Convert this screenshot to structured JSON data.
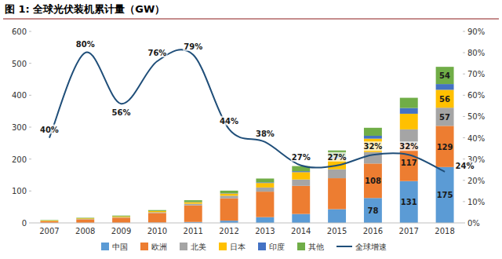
{
  "chart_data": {
    "type": "bar",
    "title": "图 1: 全球光伏装机累计量（GW）",
    "stacked": true,
    "grid": false,
    "legend": "bottom",
    "data_labels": true,
    "categories": [
      "2007",
      "2008",
      "2009",
      "2010",
      "2011",
      "2012",
      "2013",
      "2014",
      "2015",
      "2016",
      "2017",
      "2018"
    ],
    "ylim": [
      0,
      600
    ],
    "yticks": [
      0,
      100,
      200,
      300,
      400,
      500,
      600
    ],
    "y2lim": [
      0,
      90
    ],
    "y2ticks": [
      {
        "value": 0,
        "label": "0%"
      },
      {
        "value": 10,
        "label": "10%"
      },
      {
        "value": 20,
        "label": "20%"
      },
      {
        "value": 30,
        "label": "30%"
      },
      {
        "value": 40,
        "label": "40%"
      },
      {
        "value": 50,
        "label": "50%"
      },
      {
        "value": 60,
        "label": "60%"
      },
      {
        "value": 70,
        "label": "70%"
      },
      {
        "value": 80,
        "label": "80%"
      },
      {
        "value": 90,
        "label": "90%"
      }
    ],
    "series": [
      {
        "name": "中国",
        "color": "#5b9bd5",
        "type": "bar",
        "values": [
          0.1,
          0.1,
          0.3,
          1,
          3,
          7,
          18,
          28,
          43,
          78,
          131,
          175
        ],
        "value_labels": [
          null,
          null,
          null,
          null,
          null,
          null,
          null,
          null,
          null,
          "78",
          "131",
          "175"
        ]
      },
      {
        "name": "欧洲",
        "color": "#ed7d31",
        "type": "bar",
        "values": [
          5,
          11,
          16,
          30,
          52,
          70,
          80,
          88,
          97,
          108,
          117,
          129
        ],
        "value_labels": [
          null,
          null,
          null,
          null,
          null,
          null,
          null,
          null,
          null,
          "108",
          "117",
          "129"
        ]
      },
      {
        "name": "北美",
        "color": "#a5a5a5",
        "type": "bar",
        "values": [
          0.7,
          1,
          1.5,
          2.5,
          5,
          8,
          13,
          20,
          28,
          36,
          45,
          57
        ],
        "value_labels": [
          null,
          null,
          null,
          null,
          null,
          null,
          null,
          null,
          null,
          null,
          null,
          "57"
        ]
      },
      {
        "name": "日本",
        "color": "#ffc000",
        "type": "bar",
        "values": [
          1.9,
          2.1,
          2.6,
          3.6,
          5,
          7,
          14,
          23,
          34,
          42,
          49,
          56
        ],
        "value_labels": [
          null,
          null,
          null,
          null,
          null,
          null,
          null,
          null,
          null,
          null,
          null,
          "56"
        ]
      },
      {
        "name": "印度",
        "color": "#4472c4",
        "type": "bar",
        "values": [
          0,
          0,
          0,
          0,
          0.5,
          1,
          2,
          3,
          5,
          9,
          18,
          18
        ],
        "value_labels": [
          null,
          null,
          null,
          null,
          null,
          null,
          null,
          null,
          null,
          null,
          null,
          null
        ]
      },
      {
        "name": "其他",
        "color": "#70ad47",
        "type": "bar",
        "values": [
          1.3,
          1.8,
          2.5,
          3,
          5.5,
          8,
          12,
          16,
          20,
          25,
          32,
          54
        ],
        "value_labels": [
          null,
          null,
          null,
          null,
          null,
          null,
          null,
          null,
          null,
          null,
          null,
          "54"
        ]
      },
      {
        "name": "全球增速",
        "color": "#1f4e79",
        "type": "line",
        "axis": "y2",
        "marker": "none",
        "line_style": "smooth",
        "values": [
          40,
          80,
          56,
          76,
          79,
          44,
          38,
          27,
          27,
          32,
          32,
          24
        ],
        "value_labels": [
          "40%",
          "80%",
          "56%",
          "76%",
          "79%",
          "44%",
          "38%",
          "27%",
          "27%",
          "32%",
          "32%",
          "24%"
        ]
      }
    ]
  }
}
